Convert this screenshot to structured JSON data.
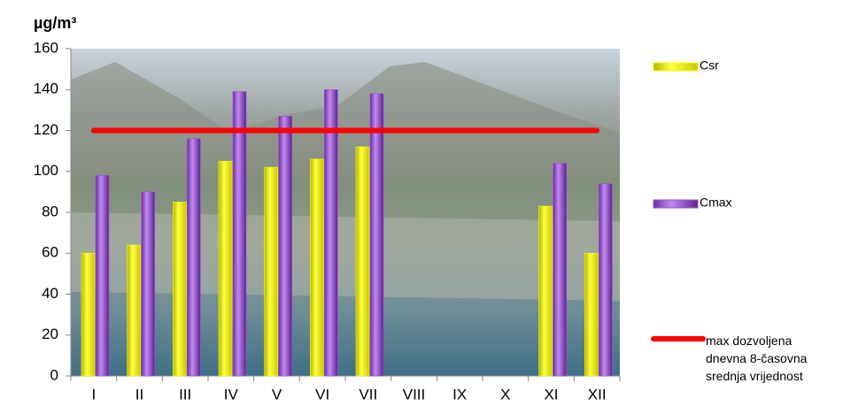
{
  "chart_data": {
    "type": "bar",
    "y_label": "µg/m³",
    "categories": [
      "I",
      "II",
      "III",
      "IV",
      "V",
      "VI",
      "VII",
      "VIII",
      "IX",
      "X",
      "XI",
      "XII"
    ],
    "series": [
      {
        "name": "Csr",
        "type": "bar",
        "color": "#ffff00",
        "values": [
          60,
          64,
          85,
          105,
          102,
          106,
          112,
          null,
          null,
          null,
          83,
          60
        ]
      },
      {
        "name": "Cmax",
        "type": "bar",
        "color": "#9b4fd6",
        "values": [
          98,
          90,
          116,
          139,
          127,
          140,
          138,
          null,
          null,
          null,
          104,
          94
        ]
      },
      {
        "name": "max dozvoljena dnevna 8-časovna srednja vrijednost",
        "type": "line",
        "color": "#ff0000",
        "values": [
          120,
          120,
          120,
          120,
          120,
          120,
          120,
          120,
          120,
          120,
          120,
          120
        ]
      }
    ],
    "ylim": [
      0,
      160
    ],
    "yticks": [
      0,
      20,
      40,
      60,
      80,
      100,
      120,
      140,
      160
    ]
  }
}
